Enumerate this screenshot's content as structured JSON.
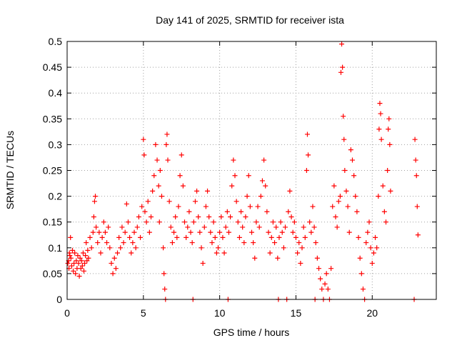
{
  "chart_data": {
    "type": "scatter",
    "title": "Day 141 of 2025, SRMTID for receiver ista",
    "xlabel": "GPS time / hours",
    "ylabel": "SRMTID / TECUs",
    "xlim": [
      0,
      24.2
    ],
    "ylim": [
      0,
      0.5
    ],
    "x_ticks": [
      0,
      5,
      10,
      15,
      20
    ],
    "x_tick_labels": [
      "0",
      "5",
      "10",
      "15",
      "20"
    ],
    "y_ticks": [
      0,
      0.05,
      0.1,
      0.15,
      0.2,
      0.25,
      0.3,
      0.35,
      0.4,
      0.45,
      0.5
    ],
    "y_tick_labels": [
      "0",
      "0.05",
      "0.1",
      "0.15",
      "0.2",
      "0.25",
      "0.3",
      "0.35",
      "0.4",
      "0.45",
      "0.5"
    ],
    "grid": true,
    "marker": "plus",
    "marker_color": "#ff0000",
    "series": [
      {
        "name": "SRMTID",
        "points": [
          [
            0.05,
            0.07
          ],
          [
            0.1,
            0.075
          ],
          [
            0.12,
            0.06
          ],
          [
            0.15,
            0.09
          ],
          [
            0.18,
            0.085
          ],
          [
            0.22,
            0.12
          ],
          [
            0.25,
            0.08
          ],
          [
            0.3,
            0.065
          ],
          [
            0.35,
            0.095
          ],
          [
            0.4,
            0.055
          ],
          [
            0.45,
            0.07
          ],
          [
            0.5,
            0.09
          ],
          [
            0.55,
            0.05
          ],
          [
            0.6,
            0.075
          ],
          [
            0.65,
            0.06
          ],
          [
            0.7,
            0.085
          ],
          [
            0.75,
            0.07
          ],
          [
            0.8,
            0.045
          ],
          [
            0.85,
            0.08
          ],
          [
            0.9,
            0.06
          ],
          [
            0.95,
            0.075
          ],
          [
            1.0,
            0.065
          ],
          [
            1.05,
            0.09
          ],
          [
            1.1,
            0.055
          ],
          [
            1.15,
            0.07
          ],
          [
            1.2,
            0.085
          ],
          [
            1.25,
            0.11
          ],
          [
            1.3,
            0.075
          ],
          [
            1.35,
            0.095
          ],
          [
            1.4,
            0.08
          ],
          [
            1.5,
            0.12
          ],
          [
            1.6,
            0.1
          ],
          [
            1.7,
            0.13
          ],
          [
            1.75,
            0.16
          ],
          [
            1.8,
            0.19
          ],
          [
            1.85,
            0.2
          ],
          [
            1.9,
            0.14
          ],
          [
            2.0,
            0.11
          ],
          [
            2.1,
            0.13
          ],
          [
            2.2,
            0.09
          ],
          [
            2.3,
            0.12
          ],
          [
            2.4,
            0.15
          ],
          [
            2.5,
            0.13
          ],
          [
            2.6,
            0.11
          ],
          [
            2.7,
            0.14
          ],
          [
            2.8,
            0.1
          ],
          [
            2.9,
            0.07
          ],
          [
            3.0,
            0.05
          ],
          [
            3.1,
            0.08
          ],
          [
            3.2,
            0.06
          ],
          [
            3.3,
            0.09
          ],
          [
            3.4,
            0.12
          ],
          [
            3.5,
            0.1
          ],
          [
            3.6,
            0.14
          ],
          [
            3.7,
            0.11
          ],
          [
            3.8,
            0.13
          ],
          [
            3.9,
            0.185
          ],
          [
            4.0,
            0.15
          ],
          [
            4.1,
            0.12
          ],
          [
            4.2,
            0.09
          ],
          [
            4.3,
            0.11
          ],
          [
            4.4,
            0.13
          ],
          [
            4.5,
            0.1
          ],
          [
            4.6,
            0.14
          ],
          [
            4.7,
            0.16
          ],
          [
            4.8,
            0.12
          ],
          [
            4.9,
            0.18
          ],
          [
            5.0,
            0.31
          ],
          [
            5.05,
            0.28
          ],
          [
            5.1,
            0.17
          ],
          [
            5.2,
            0.15
          ],
          [
            5.3,
            0.19
          ],
          [
            5.4,
            0.13
          ],
          [
            5.5,
            0.16
          ],
          [
            5.6,
            0.21
          ],
          [
            5.7,
            0.24
          ],
          [
            5.8,
            0.3
          ],
          [
            5.9,
            0.27
          ],
          [
            6.0,
            0.22
          ],
          [
            6.05,
            0.15
          ],
          [
            6.1,
            0.25
          ],
          [
            6.2,
            0.2
          ],
          [
            6.3,
            0.1
          ],
          [
            6.35,
            0.05
          ],
          [
            6.4,
            0.02
          ],
          [
            6.45,
            0.0
          ],
          [
            6.5,
            0.3
          ],
          [
            6.55,
            0.32
          ],
          [
            6.6,
            0.27
          ],
          [
            6.7,
            0.19
          ],
          [
            6.8,
            0.14
          ],
          [
            6.9,
            0.11
          ],
          [
            7.0,
            0.13
          ],
          [
            7.1,
            0.16
          ],
          [
            7.2,
            0.12
          ],
          [
            7.3,
            0.18
          ],
          [
            7.4,
            0.24
          ],
          [
            7.5,
            0.28
          ],
          [
            7.6,
            0.22
          ],
          [
            7.7,
            0.15
          ],
          [
            7.8,
            0.12
          ],
          [
            7.9,
            0.14
          ],
          [
            8.0,
            0.17
          ],
          [
            8.1,
            0.13
          ],
          [
            8.2,
            0.11
          ],
          [
            8.25,
            0.0
          ],
          [
            8.3,
            0.15
          ],
          [
            8.4,
            0.19
          ],
          [
            8.5,
            0.21
          ],
          [
            8.6,
            0.16
          ],
          [
            8.7,
            0.13
          ],
          [
            8.8,
            0.1
          ],
          [
            8.9,
            0.07
          ],
          [
            9.0,
            0.14
          ],
          [
            9.1,
            0.18
          ],
          [
            9.2,
            0.21
          ],
          [
            9.3,
            0.16
          ],
          [
            9.4,
            0.13
          ],
          [
            9.5,
            0.11
          ],
          [
            9.6,
            0.15
          ],
          [
            9.7,
            0.12
          ],
          [
            9.8,
            0.09
          ],
          [
            9.9,
            0.1
          ],
          [
            10.0,
            0.13
          ],
          [
            10.1,
            0.16
          ],
          [
            10.2,
            0.12
          ],
          [
            10.3,
            0.09
          ],
          [
            10.4,
            0.14
          ],
          [
            10.5,
            0.17
          ],
          [
            10.55,
            0.0
          ],
          [
            10.6,
            0.13
          ],
          [
            10.7,
            0.16
          ],
          [
            10.8,
            0.22
          ],
          [
            10.9,
            0.27
          ],
          [
            11.0,
            0.24
          ],
          [
            11.1,
            0.19
          ],
          [
            11.2,
            0.15
          ],
          [
            11.3,
            0.12
          ],
          [
            11.4,
            0.17
          ],
          [
            11.5,
            0.14
          ],
          [
            11.6,
            0.11
          ],
          [
            11.7,
            0.16
          ],
          [
            11.8,
            0.2
          ],
          [
            11.9,
            0.24
          ],
          [
            12.0,
            0.18
          ],
          [
            12.1,
            0.13
          ],
          [
            12.2,
            0.11
          ],
          [
            12.3,
            0.08
          ],
          [
            12.4,
            0.15
          ],
          [
            12.5,
            0.18
          ],
          [
            12.6,
            0.14
          ],
          [
            12.7,
            0.2
          ],
          [
            12.8,
            0.23
          ],
          [
            12.9,
            0.27
          ],
          [
            13.0,
            0.22
          ],
          [
            13.1,
            0.17
          ],
          [
            13.2,
            0.13
          ],
          [
            13.3,
            0.09
          ],
          [
            13.4,
            0.12
          ],
          [
            13.5,
            0.15
          ],
          [
            13.6,
            0.11
          ],
          [
            13.7,
            0.14
          ],
          [
            13.8,
            0.08
          ],
          [
            13.85,
            0.0
          ],
          [
            13.9,
            0.12
          ],
          [
            14.0,
            0.15
          ],
          [
            14.1,
            0.13
          ],
          [
            14.2,
            0.1
          ],
          [
            14.3,
            0.14
          ],
          [
            14.4,
            0.0
          ],
          [
            14.5,
            0.17
          ],
          [
            14.6,
            0.21
          ],
          [
            14.7,
            0.16
          ],
          [
            14.8,
            0.13
          ],
          [
            14.9,
            0.15
          ],
          [
            15.0,
            0.12
          ],
          [
            15.1,
            0.09
          ],
          [
            15.2,
            0.11
          ],
          [
            15.3,
            0.07
          ],
          [
            15.4,
            0.1
          ],
          [
            15.5,
            0.14
          ],
          [
            15.6,
            0.12
          ],
          [
            15.7,
            0.25
          ],
          [
            15.75,
            0.32
          ],
          [
            15.8,
            0.28
          ],
          [
            15.9,
            0.15
          ],
          [
            16.0,
            0.13
          ],
          [
            16.1,
            0.18
          ],
          [
            16.2,
            0.14
          ],
          [
            16.25,
            0.0
          ],
          [
            16.3,
            0.11
          ],
          [
            16.4,
            0.08
          ],
          [
            16.5,
            0.06
          ],
          [
            16.6,
            0.04
          ],
          [
            16.7,
            0.02
          ],
          [
            16.8,
            0.0
          ],
          [
            16.9,
            0.03
          ],
          [
            17.0,
            0.05
          ],
          [
            17.1,
            0.02
          ],
          [
            17.2,
            0.0
          ],
          [
            17.3,
            0.06
          ],
          [
            17.4,
            0.18
          ],
          [
            17.5,
            0.22
          ],
          [
            17.6,
            0.16
          ],
          [
            17.7,
            0.14
          ],
          [
            17.8,
            0.19
          ],
          [
            17.9,
            0.2
          ],
          [
            17.95,
            0.44
          ],
          [
            18.0,
            0.495
          ],
          [
            18.05,
            0.45
          ],
          [
            18.1,
            0.355
          ],
          [
            18.15,
            0.31
          ],
          [
            18.2,
            0.25
          ],
          [
            18.3,
            0.21
          ],
          [
            18.4,
            0.18
          ],
          [
            18.5,
            0.13
          ],
          [
            18.6,
            0.29
          ],
          [
            18.7,
            0.27
          ],
          [
            18.8,
            0.24
          ],
          [
            18.9,
            0.2
          ],
          [
            19.0,
            0.17
          ],
          [
            19.1,
            0.12
          ],
          [
            19.2,
            0.08
          ],
          [
            19.3,
            0.05
          ],
          [
            19.4,
            0.02
          ],
          [
            19.5,
            0.0
          ],
          [
            19.6,
            0.11
          ],
          [
            19.7,
            0.13
          ],
          [
            19.8,
            0.15
          ],
          [
            19.9,
            0.1
          ],
          [
            20.0,
            0.07
          ],
          [
            20.1,
            0.09
          ],
          [
            20.2,
            0.12
          ],
          [
            20.3,
            0.1
          ],
          [
            20.4,
            0.2
          ],
          [
            20.45,
            0.33
          ],
          [
            20.5,
            0.38
          ],
          [
            20.55,
            0.36
          ],
          [
            20.6,
            0.31
          ],
          [
            20.7,
            0.22
          ],
          [
            20.8,
            0.17
          ],
          [
            20.9,
            0.15
          ],
          [
            21.0,
            0.25
          ],
          [
            21.05,
            0.33
          ],
          [
            21.1,
            0.35
          ],
          [
            21.15,
            0.3
          ],
          [
            21.2,
            0.21
          ],
          [
            22.75,
            0.0
          ],
          [
            22.8,
            0.31
          ],
          [
            22.85,
            0.27
          ],
          [
            22.9,
            0.24
          ],
          [
            22.95,
            0.18
          ],
          [
            23.0,
            0.125
          ]
        ]
      }
    ]
  }
}
